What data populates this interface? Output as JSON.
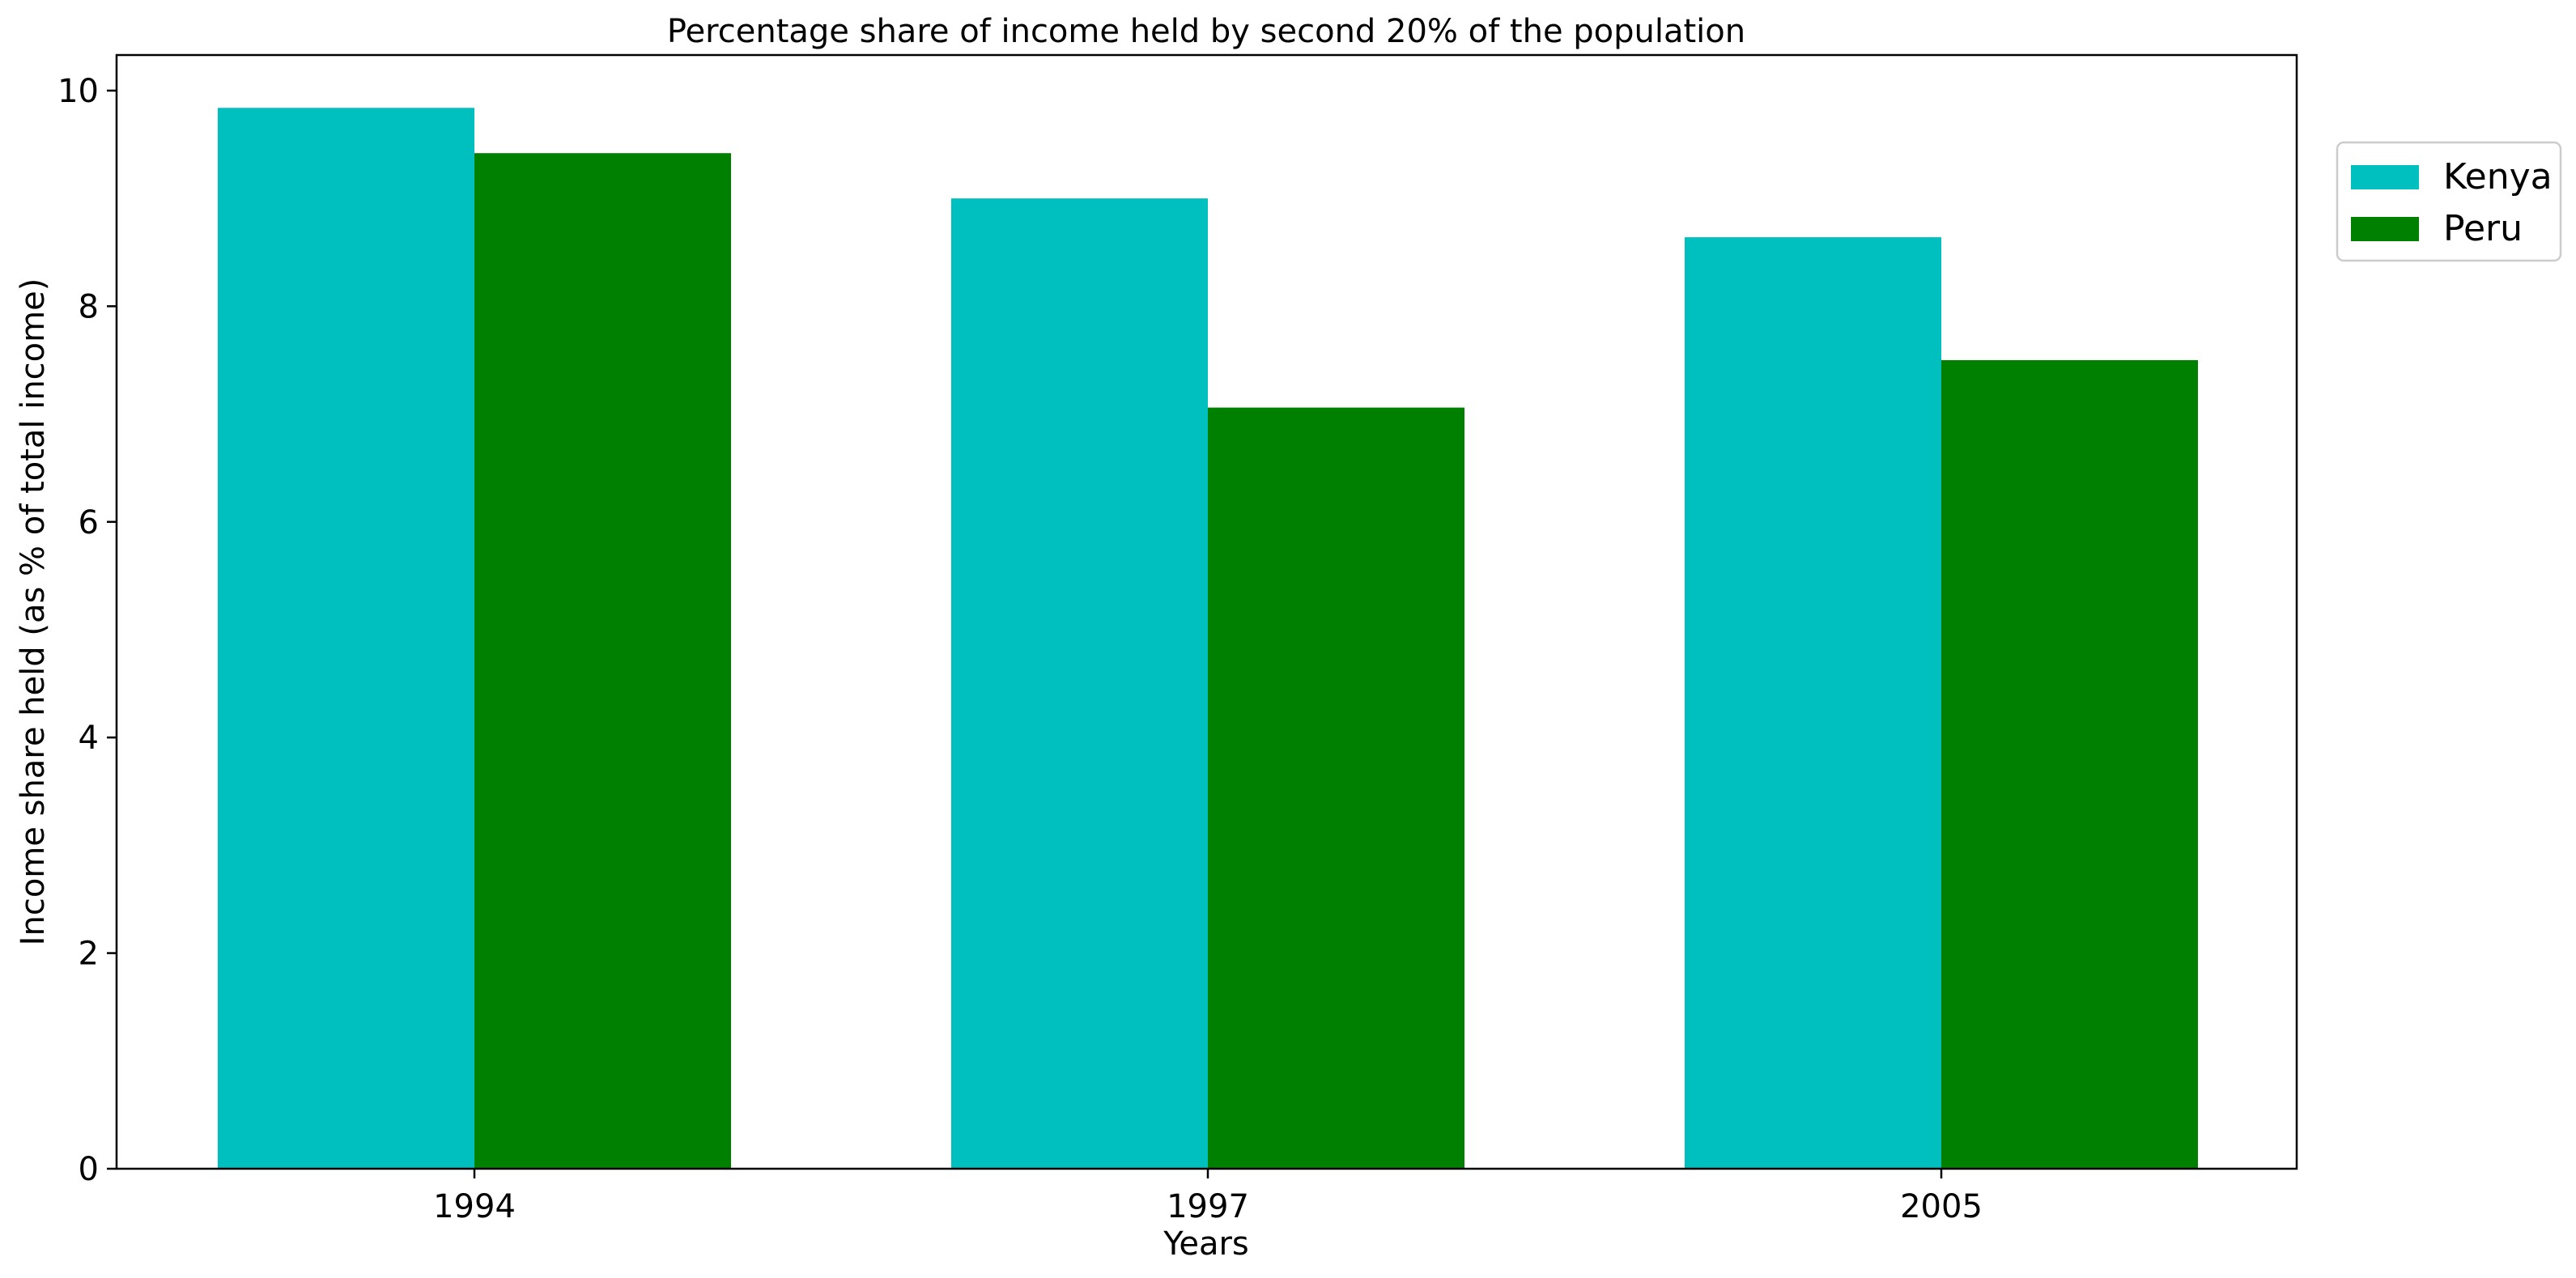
{
  "chart_data": {
    "type": "bar",
    "title": "Percentage share of income held by second 20% of the population",
    "xlabel": "Years",
    "ylabel": "Income share held (as % of total income)",
    "categories": [
      "1994",
      "1997",
      "2005"
    ],
    "series": [
      {
        "name": "Kenya",
        "color": "#00bfbf",
        "values": [
          9.84,
          9.0,
          8.64
        ]
      },
      {
        "name": "Peru",
        "color": "#008000",
        "values": [
          9.42,
          7.06,
          7.5
        ]
      }
    ],
    "ylim": [
      0,
      10.33
    ],
    "yticks": [
      0,
      2,
      4,
      6,
      8,
      10
    ],
    "grid": false,
    "legend_position": "top-right, outside plot area"
  }
}
